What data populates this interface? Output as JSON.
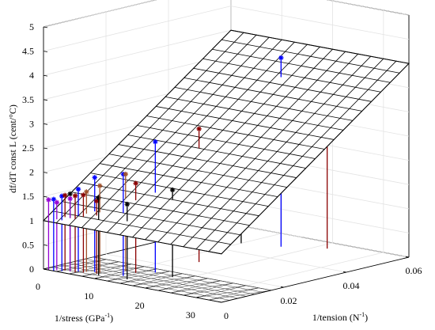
{
  "chart_data": {
    "type": "scatter",
    "view": "3d",
    "axes": {
      "x": {
        "label": "1/stress (GPa",
        "label_sup": "-1",
        "label_close": ")",
        "range": [
          0,
          35
        ],
        "ticks": [
          "0",
          "10",
          "20",
          "30"
        ]
      },
      "y": {
        "label": "1/tension (N",
        "label_sup": "-1",
        "label_close": ")",
        "range": [
          0,
          0.06
        ],
        "ticks": [
          "0",
          "0.02",
          "0.04",
          "0.06"
        ]
      },
      "z": {
        "label": "df/dT const L (cent/°C)",
        "range": [
          0,
          5
        ],
        "ticks": [
          "0",
          "0.5",
          "1",
          "1.5",
          "2",
          "2.5",
          "3",
          "3.5",
          "4",
          "4.5",
          "5"
        ]
      }
    },
    "grid": true,
    "fitted_plane": {
      "z_at_origin": 1.0,
      "dz_dy": 50
    },
    "series": [
      {
        "color": "#0000ff",
        "points": [
          {
            "x": 2,
            "y": 0.0,
            "z": 1.48
          },
          {
            "x": 3,
            "y": 0.001,
            "z": 1.55
          },
          {
            "x": 5,
            "y": 0.003,
            "z": 1.7
          },
          {
            "x": 7,
            "y": 0.005,
            "z": 1.95
          },
          {
            "x": 12,
            "y": 0.006,
            "z": 2.1
          },
          {
            "x": 14,
            "y": 0.013,
            "z": 2.7
          },
          {
            "x": 16,
            "y": 0.05,
            "z": 3.9
          }
        ]
      },
      {
        "color": "#8b0000",
        "points": [
          {
            "x": 3,
            "y": 0.002,
            "z": 1.55
          },
          {
            "x": 5,
            "y": 0.002,
            "z": 1.58
          },
          {
            "x": 6,
            "y": 0.003,
            "z": 1.6
          },
          {
            "x": 8,
            "y": 0.004,
            "z": 1.5
          },
          {
            "x": 12,
            "y": 0.01,
            "z": 1.85
          },
          {
            "x": 14,
            "y": 0.027,
            "z": 2.75
          },
          {
            "x": 22,
            "y": 0.055,
            "z": 3.7
          }
        ]
      },
      {
        "color": "#000000",
        "points": [
          {
            "x": 4,
            "y": 0.002,
            "z": 1.6
          },
          {
            "x": 9,
            "y": 0.003,
            "z": 1.6
          },
          {
            "x": 14,
            "y": 0.004,
            "z": 1.55
          },
          {
            "x": 18,
            "y": 0.012,
            "z": 1.8
          },
          {
            "x": 10,
            "y": 0.047,
            "z": 2.45
          }
        ]
      },
      {
        "color": "#a0522d",
        "points": [
          {
            "x": 8,
            "y": 0.005,
            "z": 1.8
          },
          {
            "x": 10,
            "y": 0.01,
            "z": 2.0
          },
          {
            "x": 6,
            "y": 0.004,
            "z": 1.65
          }
        ]
      },
      {
        "color": "#9400d3",
        "points": [
          {
            "x": 1,
            "y": 0.0,
            "z": 1.45
          },
          {
            "x": 2,
            "y": 0.001,
            "z": 1.4
          },
          {
            "x": 4,
            "y": 0.002,
            "z": 1.5
          }
        ]
      }
    ]
  }
}
